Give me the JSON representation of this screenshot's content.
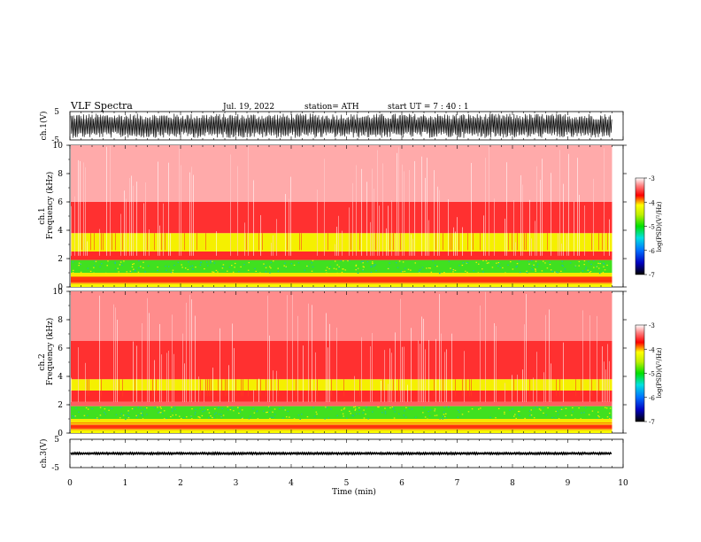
{
  "header": {
    "title": "VLF  Spectra",
    "date": "Jul.  19, 2022",
    "station": "station= ATH",
    "start": "start  UT  =    7  : 40 : 1"
  },
  "chart_data": [
    {
      "type": "line",
      "name": "ch1-waveform",
      "ylabel": "ch.1(V)",
      "ylim": [
        -5,
        5
      ],
      "yticks": [
        "5",
        "-5"
      ],
      "xlim": [
        0,
        10
      ],
      "amplitude": [
        -4.3,
        4.3
      ]
    },
    {
      "type": "heatmap",
      "name": "ch1-spectrogram",
      "ylabel": "Frequency  (kHz)",
      "channel_label": "ch.1",
      "ylim": [
        0,
        10
      ],
      "yticks": [
        "0",
        "2",
        "4",
        "6",
        "8",
        "10"
      ],
      "xlim": [
        0,
        9.8
      ],
      "colorbar": {
        "label": "log(PSD)(V²/Hz)",
        "range": [
          -7,
          -3
        ],
        "ticks": [
          "-3",
          "-4",
          "-5",
          "-6",
          "-7"
        ]
      },
      "bands": [
        {
          "from": 0,
          "to": 0.3,
          "color": "#f7f700"
        },
        {
          "from": 0.3,
          "to": 0.7,
          "color": "#ff3b10"
        },
        {
          "from": 0.7,
          "to": 1.0,
          "color": "#f7e800"
        },
        {
          "from": 1.0,
          "to": 1.9,
          "color": "#40e020"
        },
        {
          "from": 1.9,
          "to": 2.5,
          "color": "#ff2a2a"
        },
        {
          "from": 2.5,
          "to": 3.8,
          "color": "#f5f000"
        },
        {
          "from": 3.8,
          "to": 6.0,
          "color": "#ff3030"
        },
        {
          "from": 6.0,
          "to": 10.0,
          "color": "#ffaaaa"
        }
      ]
    },
    {
      "type": "heatmap",
      "name": "ch2-spectrogram",
      "ylabel": "Frequency  (kHz)",
      "channel_label": "ch.2",
      "ylim": [
        0,
        10
      ],
      "yticks": [
        "0",
        "2",
        "4",
        "6",
        "8",
        "10"
      ],
      "xlim": [
        0,
        9.8
      ],
      "colorbar": {
        "label": "log(PSD)(V²/Hz)",
        "range": [
          -7,
          -3
        ],
        "ticks": [
          "-3",
          "-4",
          "-5",
          "-6",
          "-7"
        ]
      },
      "bands": [
        {
          "from": 0,
          "to": 0.3,
          "color": "#f7f700"
        },
        {
          "from": 0.3,
          "to": 0.6,
          "color": "#ff3b10"
        },
        {
          "from": 0.6,
          "to": 1.0,
          "color": "#f7e800"
        },
        {
          "from": 1.0,
          "to": 1.9,
          "color": "#40e020"
        },
        {
          "from": 1.9,
          "to": 2.2,
          "color": "#ff6060"
        },
        {
          "from": 2.2,
          "to": 3.0,
          "color": "#ff2a2a"
        },
        {
          "from": 3.0,
          "to": 3.8,
          "color": "#f5f000"
        },
        {
          "from": 3.8,
          "to": 6.5,
          "color": "#ff3030"
        },
        {
          "from": 6.5,
          "to": 10.0,
          "color": "#ff8c8c"
        }
      ]
    },
    {
      "type": "line",
      "name": "ch3-waveform",
      "ylabel": "ch.3(V)",
      "ylim": [
        -5,
        5
      ],
      "yticks": [
        "5",
        "-5"
      ],
      "xlim": [
        0,
        10
      ],
      "level": 0,
      "amplitude": [
        -0.35,
        0.35
      ]
    }
  ],
  "x_axis": {
    "label": "Time  (min)",
    "ticks": [
      "0",
      "1",
      "2",
      "3",
      "4",
      "5",
      "6",
      "7",
      "8",
      "9",
      "10"
    ],
    "range": [
      0,
      10
    ]
  }
}
